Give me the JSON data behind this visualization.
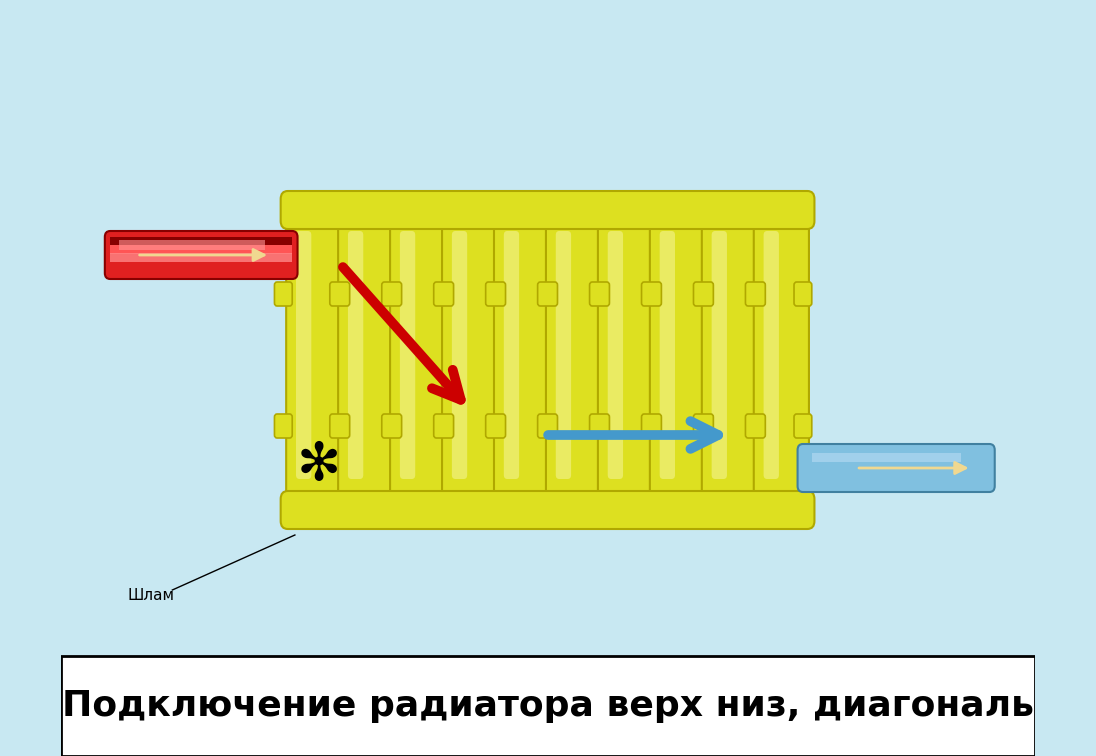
{
  "bg_color": "#c8e8f2",
  "title_text": "Подключение радиатора верх низ, диагональ",
  "title_bg": "#ffffff",
  "title_color": "#000000",
  "title_fontsize": 26,
  "rad_color_main": "#dde020",
  "rad_color_light": "#f0f080",
  "rad_color_dark": "#b0a800",
  "rad_color_shadow": "#a09800",
  "num_sections": 10,
  "pipe_red_color": "#e02020",
  "pipe_red_dark": "#880000",
  "pipe_blue_color": "#80c0e0",
  "pipe_blue_dark": "#4080a0",
  "pipe_blue_light": "#b0d8f0",
  "arrow_red_color": "#cc0000",
  "arrow_blue_color": "#4499cc",
  "arrow_cream": "#f0d890",
  "snowflake_color": "#000000",
  "shlam_text": "Шлам",
  "fig_width": 10.96,
  "fig_height": 7.56,
  "dpi": 100
}
